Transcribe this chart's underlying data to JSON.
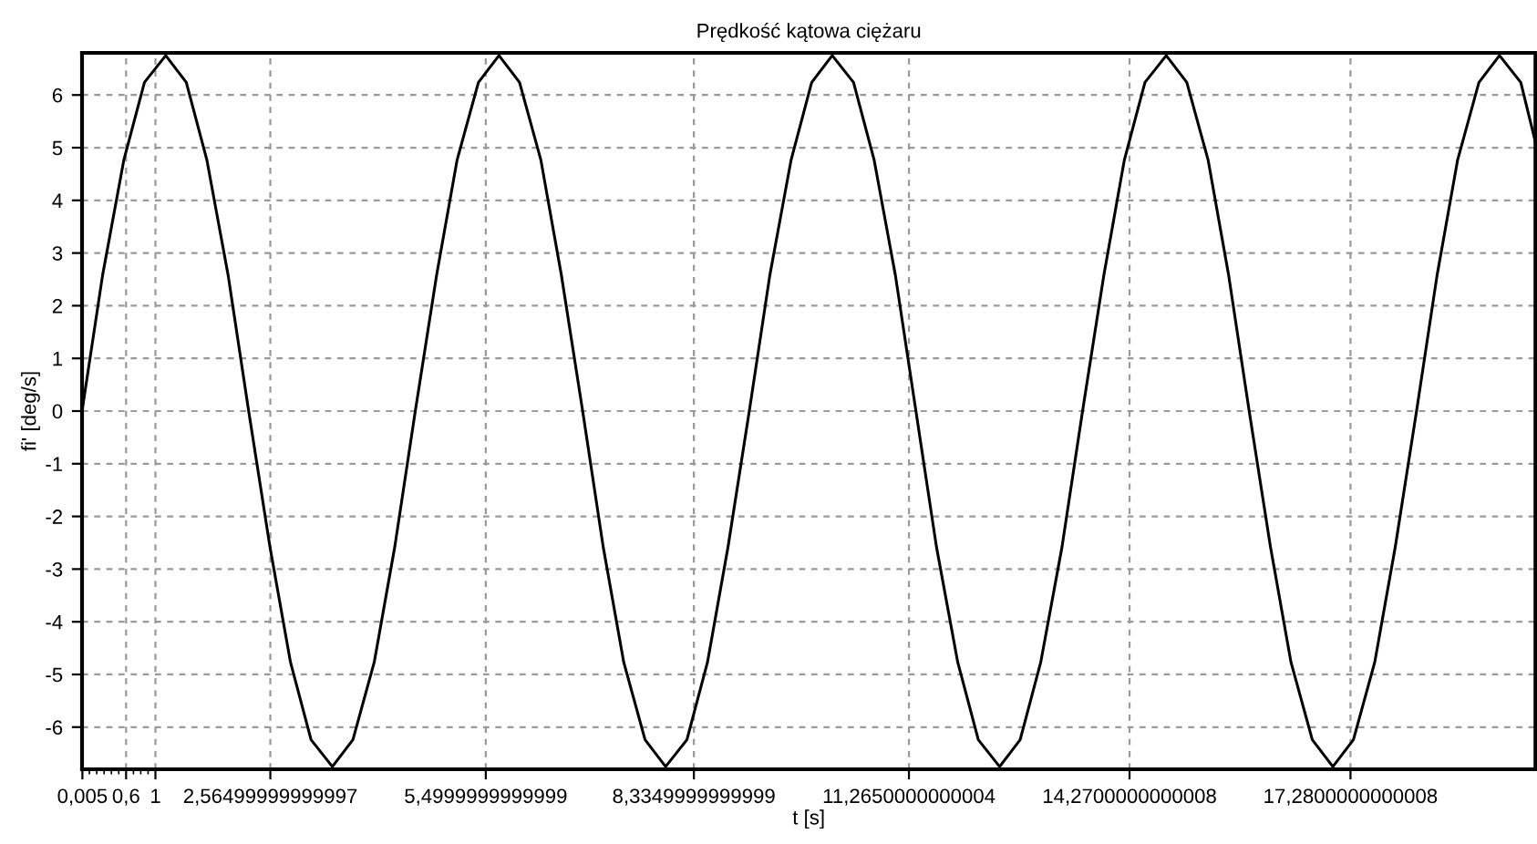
{
  "chart_data": {
    "type": "line",
    "title": "Prędkość kątowa ciężaru",
    "xlabel": "t [s]",
    "ylabel": "fi' [deg/s]",
    "series": [
      {
        "color": "#000000",
        "x": [
          0,
          0.28,
          0.57,
          0.85,
          1.14,
          1.42,
          1.7,
          1.99,
          2.27,
          2.56,
          2.84,
          3.12,
          3.41,
          3.69,
          3.98,
          4.26,
          4.54,
          4.83,
          5.11,
          5.4,
          5.68,
          5.96,
          6.25,
          6.53,
          6.82,
          7.1,
          7.38,
          7.67,
          7.95,
          8.24,
          8.52,
          8.8,
          9.09,
          9.37,
          9.66,
          9.94,
          10.22,
          10.51,
          10.79,
          11.08,
          11.36,
          11.64,
          11.93,
          12.21,
          12.5,
          12.78,
          13.06,
          13.35,
          13.63,
          13.92,
          14.2,
          14.48,
          14.77,
          15.05,
          15.34,
          15.62,
          15.9,
          16.19,
          16.47,
          16.76,
          17.04,
          17.32,
          17.61,
          17.89,
          18.18,
          18.46,
          18.74,
          19.03,
          19.31,
          19.6,
          19.8
        ],
        "values": [
          0,
          2.58,
          4.77,
          6.24,
          6.75,
          6.24,
          4.77,
          2.58,
          0,
          -2.58,
          -4.77,
          -6.24,
          -6.75,
          -6.24,
          -4.77,
          -2.58,
          0,
          2.58,
          4.77,
          6.24,
          6.75,
          6.24,
          4.77,
          2.58,
          0,
          -2.58,
          -4.77,
          -6.24,
          -6.75,
          -6.24,
          -4.77,
          -2.58,
          0,
          2.58,
          4.77,
          6.24,
          6.75,
          6.24,
          4.77,
          2.58,
          0,
          -2.58,
          -4.77,
          -6.24,
          -6.75,
          -6.24,
          -4.77,
          -2.58,
          0,
          2.58,
          4.77,
          6.24,
          6.75,
          6.24,
          4.77,
          2.58,
          0,
          -2.58,
          -4.77,
          -6.24,
          -6.75,
          -6.24,
          -4.77,
          -2.58,
          0,
          2.58,
          4.77,
          6.24,
          6.75,
          6.24,
          5.1
        ]
      }
    ],
    "xlim": [
      0,
      19.8
    ],
    "ylim": [
      -6.8,
      6.8
    ],
    "xticks": [
      {
        "value": 0.005,
        "label": "0,005"
      },
      {
        "value": 0.1,
        "label": null
      },
      {
        "value": 0.2,
        "label": null
      },
      {
        "value": 0.3,
        "label": null
      },
      {
        "value": 0.4,
        "label": null
      },
      {
        "value": 0.5,
        "label": null
      },
      {
        "value": 0.6,
        "label": "0,6"
      },
      {
        "value": 0.7,
        "label": null
      },
      {
        "value": 0.8,
        "label": null
      },
      {
        "value": 0.9,
        "label": null
      },
      {
        "value": 1,
        "label": "1"
      },
      {
        "value": 2.565,
        "label": "2,56499999999997"
      },
      {
        "value": 5.5,
        "label": "5,4999999999999"
      },
      {
        "value": 8.335,
        "label": "8,3349999999999"
      },
      {
        "value": 11.265,
        "label": "11,2650000000004"
      },
      {
        "value": 14.27,
        "label": "14,2700000000008"
      },
      {
        "value": 17.28,
        "label": "17,2800000000008"
      }
    ],
    "yticks": [
      -6,
      -5,
      -4,
      -3,
      -2,
      -1,
      0,
      1,
      2,
      3,
      4,
      5,
      6
    ],
    "grid": true,
    "marker": "none",
    "line_style": "solid",
    "legend": false
  }
}
